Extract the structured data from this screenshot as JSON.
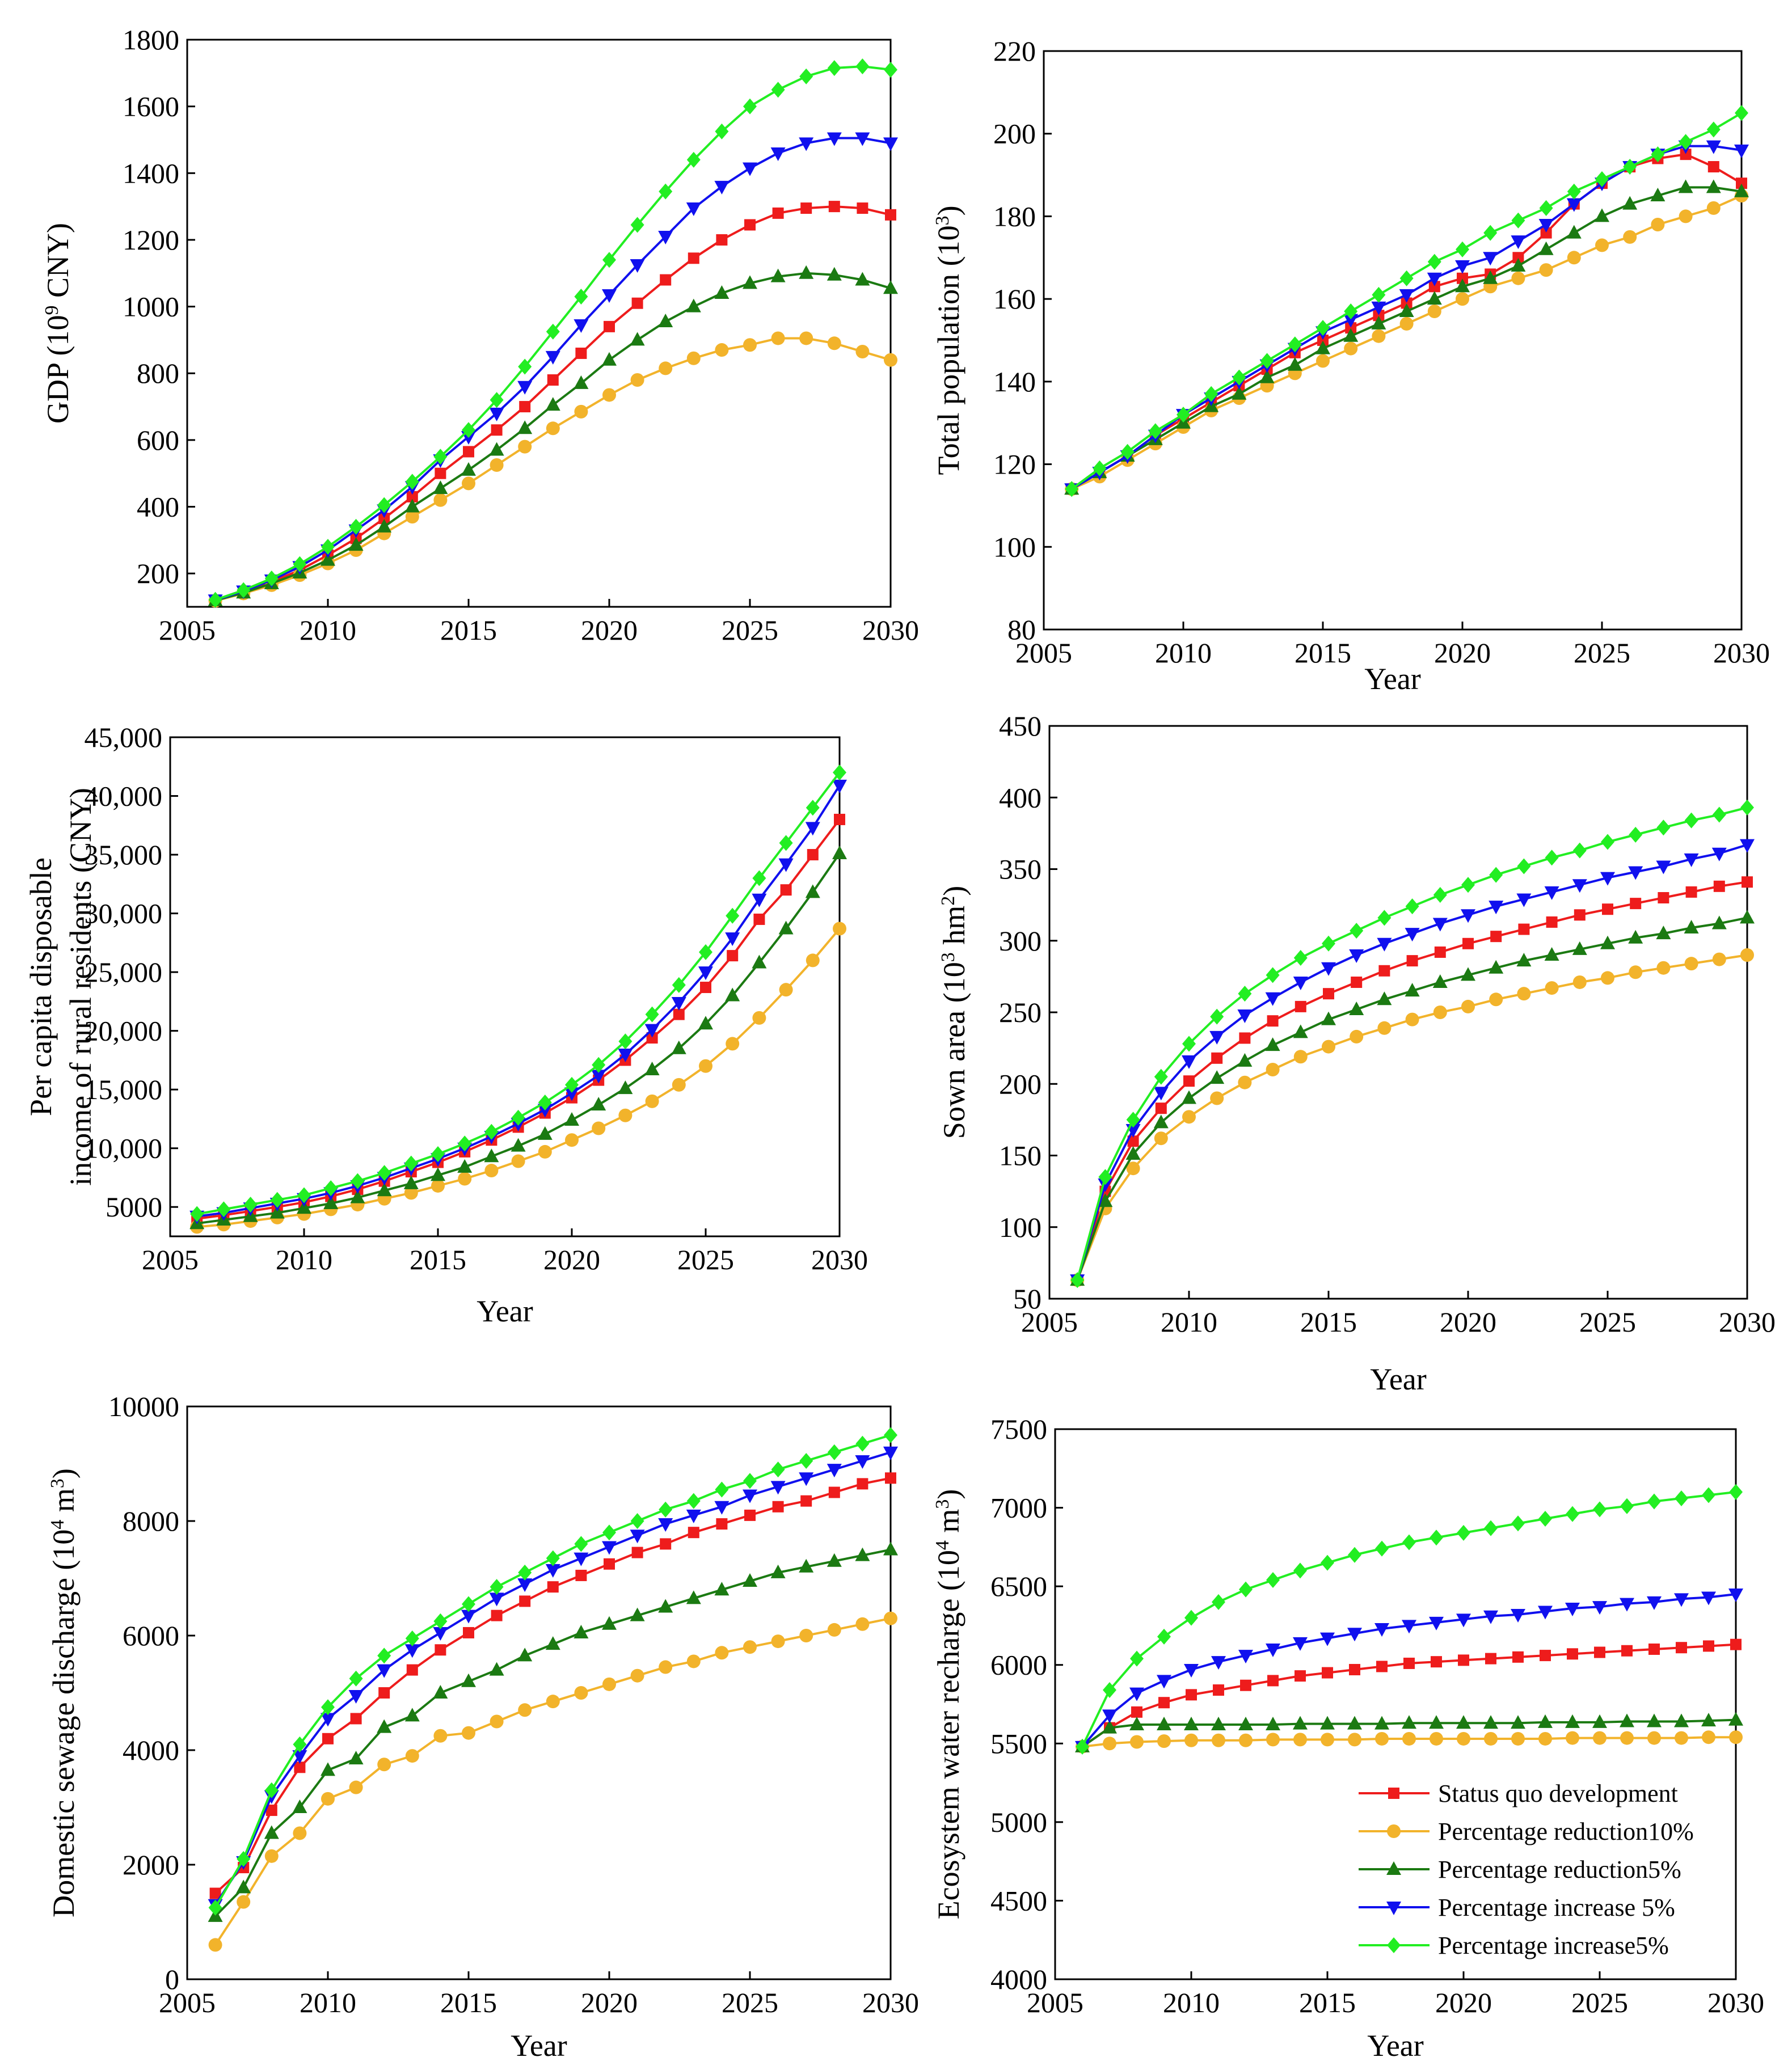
{
  "figure": {
    "series_defs": [
      {
        "key": "status_quo",
        "name": "Status quo development",
        "color": "#ee1c1c",
        "marker": "square"
      },
      {
        "key": "reduction10",
        "name": "Percentage reduction10%",
        "color": "#f2b32b",
        "marker": "circle"
      },
      {
        "key": "reduction5",
        "name": "Percentage reduction5%",
        "color": "#1b7a12",
        "marker": "triangle-up"
      },
      {
        "key": "increase5_a",
        "name": "Percentage increase 5%",
        "color": "#1010ee",
        "marker": "triangle-down"
      },
      {
        "key": "increase5_b",
        "name": "Percentage increase5%",
        "color": "#22ee22",
        "marker": "diamond"
      }
    ],
    "legend": {
      "placement": "bottom-right of panel 6"
    }
  },
  "chart_data": [
    {
      "id": "gdp",
      "type": "line",
      "title": "",
      "ylabel_parts": [
        "GDP (10",
        "9",
        " CNY)"
      ],
      "xlabel": "",
      "xlim": [
        2005,
        2030
      ],
      "ylim": [
        100,
        1800
      ],
      "xticks": [
        "2005",
        "2010",
        "2015",
        "2020",
        "2025",
        "2030"
      ],
      "yticks": [
        "200",
        "400",
        "600",
        "800",
        "1000",
        "1200",
        "1400",
        "1600",
        "1800"
      ],
      "x": [
        2006,
        2007,
        2008,
        2009,
        2010,
        2011,
        2012,
        2013,
        2014,
        2015,
        2016,
        2017,
        2018,
        2019,
        2020,
        2021,
        2022,
        2023,
        2024,
        2025,
        2026,
        2027,
        2028,
        2029,
        2030
      ],
      "series": {
        "status_quo": [
          120,
          145,
          175,
          210,
          255,
          305,
          365,
          430,
          500,
          565,
          630,
          700,
          780,
          860,
          940,
          1010,
          1080,
          1145,
          1200,
          1245,
          1280,
          1295,
          1300,
          1295,
          1275
        ],
        "reduction10": [
          118,
          140,
          165,
          195,
          230,
          270,
          320,
          370,
          420,
          470,
          525,
          580,
          635,
          685,
          735,
          780,
          815,
          845,
          870,
          885,
          905,
          905,
          890,
          865,
          840
        ],
        "reduction5": [
          119,
          142,
          170,
          202,
          240,
          285,
          340,
          400,
          455,
          510,
          570,
          635,
          705,
          770,
          840,
          900,
          955,
          1000,
          1040,
          1070,
          1090,
          1100,
          1095,
          1080,
          1055
        ],
        "increase5_a": [
          120,
          147,
          180,
          220,
          270,
          330,
          390,
          460,
          540,
          610,
          680,
          760,
          850,
          945,
          1035,
          1125,
          1210,
          1295,
          1360,
          1415,
          1460,
          1490,
          1505,
          1505,
          1490
        ],
        "increase5_b": [
          121,
          150,
          185,
          228,
          280,
          340,
          405,
          475,
          550,
          630,
          720,
          820,
          925,
          1030,
          1140,
          1245,
          1345,
          1440,
          1525,
          1600,
          1650,
          1690,
          1715,
          1720,
          1710
        ]
      }
    },
    {
      "id": "population",
      "type": "line",
      "title": "",
      "ylabel_parts": [
        "Total population (10",
        "3",
        ")"
      ],
      "xlabel": "Year",
      "xlim": [
        2005,
        2030
      ],
      "ylim": [
        80,
        220
      ],
      "xticks": [
        "2005",
        "2010",
        "2015",
        "2020",
        "2025",
        "2030"
      ],
      "yticks": [
        "80",
        "100",
        "120",
        "140",
        "160",
        "180",
        "200",
        "220"
      ],
      "x": [
        2006,
        2007,
        2008,
        2009,
        2010,
        2011,
        2012,
        2013,
        2014,
        2015,
        2016,
        2017,
        2018,
        2019,
        2020,
        2021,
        2022,
        2023,
        2024,
        2025,
        2026,
        2027,
        2028,
        2029,
        2030
      ],
      "series": {
        "status_quo": [
          114,
          118,
          122,
          127,
          131,
          135,
          139,
          143,
          147,
          150,
          153,
          156,
          159,
          163,
          165,
          166,
          170,
          176,
          183,
          188,
          192,
          194,
          195,
          192,
          188
        ],
        "reduction10": [
          114,
          117,
          121,
          125,
          129,
          133,
          136,
          139,
          142,
          145,
          148,
          151,
          154,
          157,
          160,
          163,
          165,
          167,
          170,
          173,
          175,
          178,
          180,
          182,
          185
        ],
        "reduction5": [
          114,
          118,
          122,
          126,
          130,
          134,
          137,
          141,
          144,
          148,
          151,
          154,
          157,
          160,
          163,
          165,
          168,
          172,
          176,
          180,
          183,
          185,
          187,
          187,
          186
        ],
        "increase5_a": [
          114,
          118,
          122,
          127,
          132,
          136,
          140,
          144,
          148,
          152,
          155,
          158,
          161,
          165,
          168,
          170,
          174,
          178,
          183,
          188,
          192,
          195,
          197,
          197,
          196
        ],
        "increase5_b": [
          114,
          119,
          123,
          128,
          132,
          137,
          141,
          145,
          149,
          153,
          157,
          161,
          165,
          169,
          172,
          176,
          179,
          182,
          186,
          189,
          192,
          195,
          198,
          201,
          205
        ]
      }
    },
    {
      "id": "income",
      "type": "line",
      "title": "",
      "ylabel_lines": [
        "Per capita disposable",
        "income of rural residents (CNY)"
      ],
      "xlabel": "Year",
      "xlim": [
        2005,
        2030
      ],
      "ylim": [
        2500,
        45000
      ],
      "xticks": [
        "2005",
        "2010",
        "2015",
        "2020",
        "2025",
        "2030"
      ],
      "yticks": [
        "5000",
        "10,000",
        "15,000",
        "20,000",
        "25,000",
        "30,000",
        "35,000",
        "40,000",
        "45,000"
      ],
      "x": [
        2006,
        2007,
        2008,
        2009,
        2010,
        2011,
        2012,
        2013,
        2014,
        2015,
        2016,
        2017,
        2018,
        2019,
        2020,
        2021,
        2022,
        2023,
        2024,
        2025,
        2026,
        2027,
        2028,
        2029,
        2030
      ],
      "series": {
        "status_quo": [
          4000,
          4300,
          4650,
          5000,
          5400,
          5900,
          6500,
          7200,
          8000,
          8800,
          9700,
          10700,
          11800,
          13000,
          14300,
          15800,
          17500,
          19400,
          21400,
          23700,
          26400,
          29500,
          32000,
          35000,
          38000
        ],
        "reduction10": [
          3300,
          3500,
          3800,
          4100,
          4400,
          4800,
          5200,
          5700,
          6200,
          6800,
          7400,
          8100,
          8900,
          9700,
          10700,
          11700,
          12800,
          14000,
          15400,
          17000,
          18900,
          21100,
          23500,
          26000,
          28700
        ],
        "reduction5": [
          3600,
          3900,
          4200,
          4500,
          4900,
          5300,
          5800,
          6400,
          7000,
          7700,
          8400,
          9300,
          10200,
          11200,
          12400,
          13700,
          15100,
          16700,
          18500,
          20600,
          23000,
          25800,
          28700,
          31800,
          35100
        ],
        "increase5_a": [
          4200,
          4500,
          4900,
          5300,
          5700,
          6200,
          6800,
          7500,
          8300,
          9100,
          10000,
          11000,
          12100,
          13300,
          14700,
          16200,
          18000,
          20100,
          22400,
          25000,
          27900,
          31200,
          34200,
          37300,
          40900
        ],
        "increase5_b": [
          4400,
          4800,
          5200,
          5600,
          6000,
          6600,
          7200,
          7900,
          8700,
          9500,
          10400,
          11400,
          12600,
          13900,
          15400,
          17100,
          19100,
          21400,
          23900,
          26700,
          29800,
          33000,
          36000,
          39000,
          42000
        ]
      }
    },
    {
      "id": "sown_area",
      "type": "line",
      "title": "",
      "ylabel_parts": [
        "Sown area (10",
        "3",
        " hm",
        "2",
        ")"
      ],
      "xlabel": "Year",
      "xlim": [
        2005,
        2030
      ],
      "ylim": [
        50,
        450
      ],
      "xticks": [
        "2005",
        "2010",
        "2015",
        "2020",
        "2025",
        "2030"
      ],
      "yticks": [
        "50",
        "100",
        "150",
        "200",
        "250",
        "300",
        "350",
        "400",
        "450"
      ],
      "x": [
        2006,
        2007,
        2008,
        2009,
        2010,
        2011,
        2012,
        2013,
        2014,
        2015,
        2016,
        2017,
        2018,
        2019,
        2020,
        2021,
        2022,
        2023,
        2024,
        2025,
        2026,
        2027,
        2028,
        2029,
        2030
      ],
      "series": {
        "status_quo": [
          63,
          125,
          160,
          183,
          202,
          218,
          232,
          244,
          254,
          263,
          271,
          279,
          286,
          292,
          298,
          303,
          308,
          313,
          318,
          322,
          326,
          330,
          334,
          338,
          341
        ],
        "reduction10": [
          63,
          113,
          141,
          162,
          177,
          190,
          201,
          210,
          219,
          226,
          233,
          239,
          245,
          250,
          254,
          259,
          263,
          267,
          271,
          274,
          278,
          281,
          284,
          287,
          290
        ],
        "reduction5": [
          63,
          118,
          151,
          173,
          190,
          204,
          216,
          227,
          236,
          245,
          252,
          259,
          265,
          271,
          276,
          281,
          286,
          290,
          294,
          298,
          302,
          305,
          309,
          312,
          316
        ],
        "increase5_a": [
          63,
          130,
          168,
          194,
          216,
          233,
          248,
          260,
          271,
          281,
          290,
          298,
          305,
          312,
          318,
          324,
          329,
          334,
          339,
          344,
          348,
          352,
          357,
          361,
          367
        ],
        "increase5_b": [
          63,
          135,
          175,
          205,
          228,
          247,
          263,
          276,
          288,
          298,
          307,
          316,
          324,
          332,
          339,
          346,
          352,
          358,
          363,
          369,
          374,
          379,
          384,
          388,
          393
        ]
      }
    },
    {
      "id": "sewage",
      "type": "line",
      "title": "",
      "ylabel_parts": [
        "Domestic sewage discharge (10",
        "4",
        " m",
        "3",
        ")"
      ],
      "xlabel": "Year",
      "xlim": [
        2005,
        2030
      ],
      "ylim": [
        0,
        10000
      ],
      "xticks": [
        "2005",
        "2010",
        "2015",
        "2020",
        "2025",
        "2030"
      ],
      "yticks": [
        "0",
        "2000",
        "4000",
        "6000",
        "8000",
        "10000"
      ],
      "x": [
        2006,
        2007,
        2008,
        2009,
        2010,
        2011,
        2012,
        2013,
        2014,
        2015,
        2016,
        2017,
        2018,
        2019,
        2020,
        2021,
        2022,
        2023,
        2024,
        2025,
        2026,
        2027,
        2028,
        2029,
        2030
      ],
      "series": {
        "status_quo": [
          1500,
          1950,
          2950,
          3700,
          4200,
          4550,
          5000,
          5400,
          5750,
          6050,
          6350,
          6600,
          6850,
          7050,
          7250,
          7450,
          7600,
          7800,
          7950,
          8100,
          8250,
          8350,
          8500,
          8650,
          8750
        ],
        "reduction10": [
          600,
          1350,
          2150,
          2550,
          3150,
          3350,
          3750,
          3900,
          4250,
          4300,
          4500,
          4700,
          4850,
          5000,
          5150,
          5300,
          5450,
          5550,
          5700,
          5800,
          5900,
          6000,
          6100,
          6200,
          6300
        ],
        "reduction5": [
          1100,
          1600,
          2550,
          3000,
          3650,
          3850,
          4400,
          4600,
          5000,
          5200,
          5400,
          5650,
          5850,
          6050,
          6200,
          6350,
          6500,
          6650,
          6800,
          6950,
          7100,
          7200,
          7300,
          7400,
          7500
        ],
        "increase5_a": [
          1300,
          2050,
          3200,
          3900,
          4550,
          4950,
          5400,
          5750,
          6050,
          6350,
          6650,
          6900,
          7150,
          7350,
          7550,
          7750,
          7950,
          8100,
          8250,
          8450,
          8600,
          8750,
          8900,
          9050,
          9200
        ],
        "increase5_b": [
          1250,
          2100,
          3300,
          4100,
          4750,
          5250,
          5650,
          5950,
          6250,
          6550,
          6850,
          7100,
          7350,
          7600,
          7800,
          8000,
          8200,
          8350,
          8550,
          8700,
          8900,
          9050,
          9200,
          9350,
          9500
        ]
      }
    },
    {
      "id": "recharge",
      "type": "line",
      "title": "",
      "ylabel_parts": [
        "Ecosystem water recharge (10",
        "4",
        " m",
        "3",
        ")"
      ],
      "xlabel": "Year",
      "xlim": [
        2005,
        2030
      ],
      "ylim": [
        4000,
        7500
      ],
      "xticks": [
        "2005",
        "2010",
        "2015",
        "2020",
        "2025",
        "2030"
      ],
      "yticks": [
        "4000",
        "4500",
        "5000",
        "5500",
        "6000",
        "6500",
        "7000",
        "7500"
      ],
      "x": [
        2006,
        2007,
        2008,
        2009,
        2010,
        2011,
        2012,
        2013,
        2014,
        2015,
        2016,
        2017,
        2018,
        2019,
        2020,
        2021,
        2022,
        2023,
        2024,
        2025,
        2026,
        2027,
        2028,
        2029,
        2030
      ],
      "series": {
        "status_quo": [
          5480,
          5600,
          5700,
          5760,
          5810,
          5840,
          5870,
          5900,
          5930,
          5950,
          5970,
          5990,
          6010,
          6020,
          6030,
          6040,
          6050,
          6060,
          6070,
          6080,
          6090,
          6100,
          6110,
          6120,
          6130
        ],
        "reduction10": [
          5480,
          5500,
          5510,
          5515,
          5520,
          5520,
          5520,
          5525,
          5525,
          5525,
          5525,
          5530,
          5530,
          5530,
          5530,
          5530,
          5530,
          5530,
          5535,
          5535,
          5535,
          5535,
          5535,
          5540,
          5540
        ],
        "reduction5": [
          5480,
          5600,
          5620,
          5620,
          5620,
          5620,
          5620,
          5620,
          5625,
          5625,
          5625,
          5625,
          5630,
          5630,
          5630,
          5630,
          5630,
          5635,
          5635,
          5635,
          5640,
          5640,
          5640,
          5645,
          5650
        ],
        "increase5_a": [
          5480,
          5680,
          5820,
          5900,
          5970,
          6020,
          6060,
          6100,
          6140,
          6170,
          6200,
          6230,
          6250,
          6270,
          6290,
          6310,
          6320,
          6340,
          6360,
          6370,
          6390,
          6400,
          6420,
          6430,
          6450
        ],
        "increase5_b": [
          5480,
          5840,
          6040,
          6180,
          6300,
          6400,
          6480,
          6540,
          6600,
          6650,
          6700,
          6740,
          6780,
          6810,
          6840,
          6870,
          6900,
          6930,
          6960,
          6990,
          7010,
          7040,
          7060,
          7080,
          7100
        ]
      }
    }
  ]
}
